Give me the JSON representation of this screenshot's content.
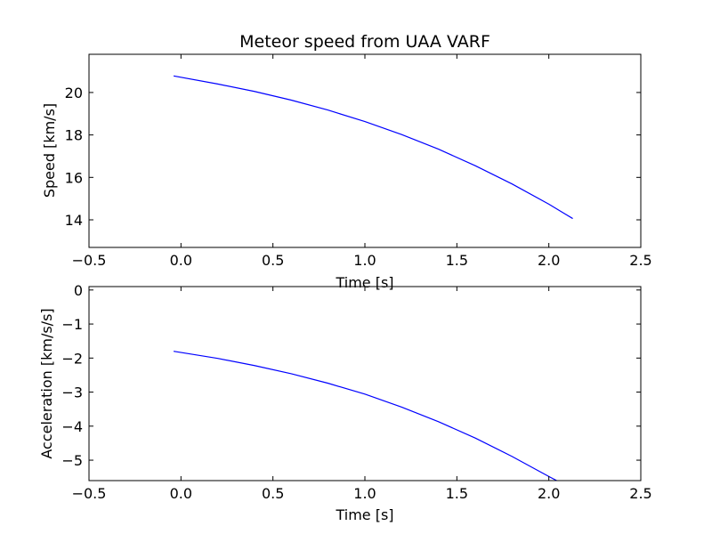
{
  "chart_data": [
    {
      "type": "line",
      "title": "Meteor speed from  UAA VARF",
      "xlabel": "Time [s]",
      "ylabel": "Speed [km/s]",
      "xlim": [
        -0.5,
        2.5
      ],
      "ylim": [
        12.7,
        21.8
      ],
      "xticks": [
        -0.5,
        0.0,
        0.5,
        1.0,
        1.5,
        2.0,
        2.5
      ],
      "xtick_labels": [
        "−0.5",
        "0.0",
        "0.5",
        "1.0",
        "1.5",
        "2.0",
        "2.5"
      ],
      "yticks": [
        14,
        16,
        18,
        20
      ],
      "ytick_labels": [
        "14",
        "16",
        "18",
        "20"
      ],
      "grid": false,
      "line_color": "#0000ff",
      "series": [
        {
          "x": [
            -0.04,
            0.2,
            0.4,
            0.6,
            0.8,
            1.0,
            1.2,
            1.4,
            1.6,
            1.8,
            2.0,
            2.13
          ],
          "values": [
            20.78,
            20.4,
            20.05,
            19.64,
            19.17,
            18.63,
            18.02,
            17.33,
            16.55,
            15.69,
            14.74,
            14.06
          ]
        }
      ]
    },
    {
      "type": "line",
      "title": "",
      "xlabel": "Time [s]",
      "ylabel": "Acceleration [km/s/s]",
      "xlim": [
        -0.5,
        2.5
      ],
      "ylim": [
        -5.6,
        0.1
      ],
      "xticks": [
        -0.5,
        0.0,
        0.5,
        1.0,
        1.5,
        2.0,
        2.5
      ],
      "xtick_labels": [
        "−0.5",
        "0.0",
        "0.5",
        "1.0",
        "1.5",
        "2.0",
        "2.5"
      ],
      "yticks": [
        -5,
        -4,
        -3,
        -2,
        -1,
        0
      ],
      "ytick_labels": [
        "−5",
        "−4",
        "−3",
        "−2",
        "−1",
        "0"
      ],
      "grid": false,
      "line_color": "#0000ff",
      "series": [
        {
          "x": [
            -0.04,
            0.2,
            0.4,
            0.6,
            0.8,
            1.0,
            1.2,
            1.4,
            1.6,
            1.8,
            2.0,
            2.05
          ],
          "values": [
            -1.8,
            -2.01,
            -2.22,
            -2.46,
            -2.74,
            -3.06,
            -3.44,
            -3.87,
            -4.35,
            -4.89,
            -5.48,
            -5.62
          ]
        }
      ]
    }
  ]
}
